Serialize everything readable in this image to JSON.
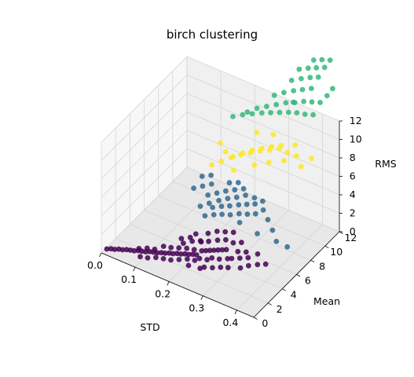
{
  "chart_data": {
    "type": "scatter",
    "subtype": "3d",
    "title": "birch clustering",
    "xlabel": "STD",
    "ylabel": "Mean",
    "zlabel": "RMS",
    "xlim": [
      0,
      0.45
    ],
    "ylim": [
      0,
      12
    ],
    "zlim": [
      0,
      12
    ],
    "x_ticks": [
      "0.0",
      "0.1",
      "0.2",
      "0.3",
      "0.4"
    ],
    "y_ticks": [
      "0",
      "2",
      "4",
      "6",
      "8",
      "10",
      "12"
    ],
    "z_ticks": [
      "0",
      "2",
      "4",
      "6",
      "8",
      "10",
      "12"
    ],
    "grid": true,
    "legend": "none",
    "colors": {
      "pane_left": "#f7f7f7",
      "pane_back": "#f0f0f0",
      "pane_floor": "#e8e8e8",
      "grid": "#d5d5d5",
      "cluster_0": "#440154",
      "cluster_1": "#31688e",
      "cluster_2": "#35b779",
      "cluster_3": "#fde725"
    },
    "series": [
      {
        "cluster": 0,
        "color": "#440154",
        "points": [
          [
            0.01,
            0.3,
            0.35
          ],
          [
            0.02,
            0.4,
            0.45
          ],
          [
            0.03,
            0.45,
            0.5
          ],
          [
            0.04,
            0.55,
            0.6
          ],
          [
            0.05,
            0.6,
            0.65
          ],
          [
            0.06,
            0.7,
            0.75
          ],
          [
            0.07,
            0.75,
            0.8
          ],
          [
            0.08,
            0.8,
            0.85
          ],
          [
            0.09,
            0.9,
            0.95
          ],
          [
            0.1,
            0.95,
            1.0
          ],
          [
            0.11,
            1.0,
            1.05
          ],
          [
            0.12,
            1.1,
            1.15
          ],
          [
            0.13,
            1.15,
            1.2
          ],
          [
            0.14,
            1.2,
            1.25
          ],
          [
            0.15,
            1.3,
            1.35
          ],
          [
            0.16,
            1.35,
            1.4
          ],
          [
            0.17,
            1.45,
            1.5
          ],
          [
            0.18,
            1.5,
            1.55
          ],
          [
            0.19,
            1.6,
            1.65
          ],
          [
            0.2,
            1.65,
            1.7
          ],
          [
            0.21,
            1.75,
            1.8
          ],
          [
            0.22,
            1.8,
            1.85
          ],
          [
            0.23,
            1.9,
            1.95
          ],
          [
            0.24,
            1.95,
            2.0
          ],
          [
            0.15,
            1.6,
            1.8
          ],
          [
            0.17,
            1.7,
            1.9
          ],
          [
            0.19,
            1.85,
            2.05
          ],
          [
            0.21,
            2.0,
            2.2
          ],
          [
            0.23,
            2.1,
            2.3
          ],
          [
            0.25,
            2.2,
            2.4
          ],
          [
            0.26,
            2.3,
            2.5
          ],
          [
            0.27,
            2.4,
            2.6
          ],
          [
            0.28,
            2.5,
            2.7
          ],
          [
            0.29,
            2.6,
            2.8
          ],
          [
            0.3,
            2.7,
            2.9
          ],
          [
            0.31,
            2.8,
            3.0
          ],
          [
            0.18,
            1.2,
            1.1
          ],
          [
            0.2,
            1.4,
            1.3
          ],
          [
            0.22,
            1.6,
            1.5
          ],
          [
            0.24,
            1.7,
            1.6
          ],
          [
            0.25,
            1.9,
            1.8
          ],
          [
            0.27,
            2.0,
            1.9
          ],
          [
            0.28,
            2.2,
            2.1
          ],
          [
            0.3,
            2.3,
            2.2
          ],
          [
            0.32,
            2.5,
            2.4
          ],
          [
            0.33,
            2.6,
            2.5
          ],
          [
            0.2,
            2.0,
            2.6
          ],
          [
            0.22,
            2.3,
            2.9
          ],
          [
            0.24,
            2.5,
            3.1
          ],
          [
            0.26,
            2.7,
            3.2
          ],
          [
            0.28,
            3.0,
            3.4
          ],
          [
            0.3,
            3.2,
            3.6
          ],
          [
            0.32,
            3.3,
            3.5
          ],
          [
            0.34,
            3.5,
            3.7
          ],
          [
            0.36,
            3.2,
            3.2
          ],
          [
            0.35,
            2.8,
            2.7
          ],
          [
            0.37,
            3.0,
            2.9
          ],
          [
            0.38,
            2.6,
            2.5
          ],
          [
            0.4,
            2.9,
            2.7
          ],
          [
            0.33,
            2.1,
            1.9
          ],
          [
            0.36,
            2.4,
            2.1
          ],
          [
            0.26,
            1.5,
            1.2
          ],
          [
            0.29,
            1.8,
            1.5
          ],
          [
            0.31,
            2.0,
            1.7
          ],
          [
            0.12,
            0.8,
            0.7
          ],
          [
            0.14,
            1.0,
            0.9
          ],
          [
            0.16,
            1.1,
            1.0
          ],
          [
            0.1,
            0.7,
            0.6
          ],
          [
            0.22,
            2.8,
            3.3
          ],
          [
            0.25,
            3.1,
            3.6
          ],
          [
            0.27,
            3.4,
            3.9
          ],
          [
            0.29,
            3.6,
            4.0
          ],
          [
            0.31,
            3.8,
            4.1
          ],
          [
            0.23,
            1.3,
            1.2
          ],
          [
            0.27,
            1.6,
            1.4
          ],
          [
            0.34,
            3.0,
            3.1
          ],
          [
            0.39,
            3.4,
            3.3
          ],
          [
            0.42,
            3.1,
            2.9
          ],
          [
            0.19,
            2.2,
            2.8
          ],
          [
            0.21,
            2.5,
            3.0
          ],
          [
            0.13,
            1.3,
            1.4
          ],
          [
            0.11,
            1.2,
            1.3
          ],
          [
            0.09,
            1.0,
            1.1
          ],
          [
            0.24,
            2.6,
            2.9
          ]
        ]
      },
      {
        "cluster": 1,
        "color": "#31688e",
        "points": [
          [
            0.23,
            3.6,
            4.8
          ],
          [
            0.25,
            3.9,
            5.0
          ],
          [
            0.27,
            4.1,
            5.2
          ],
          [
            0.29,
            4.3,
            5.3
          ],
          [
            0.31,
            4.6,
            5.5
          ],
          [
            0.33,
            4.8,
            5.6
          ],
          [
            0.35,
            5.0,
            5.8
          ],
          [
            0.24,
            4.2,
            5.4
          ],
          [
            0.26,
            4.5,
            5.6
          ],
          [
            0.28,
            4.7,
            5.8
          ],
          [
            0.3,
            5.0,
            6.0
          ],
          [
            0.32,
            5.2,
            6.2
          ],
          [
            0.34,
            5.4,
            6.4
          ],
          [
            0.21,
            3.9,
            5.3
          ],
          [
            0.23,
            4.2,
            5.7
          ],
          [
            0.25,
            4.6,
            6.0
          ],
          [
            0.27,
            4.9,
            6.3
          ],
          [
            0.29,
            5.2,
            6.5
          ],
          [
            0.31,
            5.5,
            6.8
          ],
          [
            0.22,
            4.5,
            6.2
          ],
          [
            0.24,
            4.8,
            6.5
          ],
          [
            0.26,
            5.1,
            6.8
          ],
          [
            0.28,
            5.4,
            7.0
          ],
          [
            0.3,
            5.7,
            7.2
          ],
          [
            0.2,
            4.7,
            6.7
          ],
          [
            0.22,
            5.0,
            7.0
          ],
          [
            0.19,
            5.1,
            7.3
          ],
          [
            0.21,
            5.4,
            7.5
          ],
          [
            0.18,
            4.4,
            6.4
          ],
          [
            0.36,
            5.6,
            5.9
          ],
          [
            0.38,
            5.3,
            5.4
          ],
          [
            0.4,
            5.0,
            4.8
          ],
          [
            0.37,
            4.3,
            4.5
          ],
          [
            0.42,
            4.6,
            4.2
          ],
          [
            0.33,
            5.8,
            6.6
          ],
          [
            0.35,
            6.0,
            6.4
          ],
          [
            0.28,
            5.9,
            7.4
          ],
          [
            0.26,
            5.6,
            7.3
          ],
          [
            0.32,
            4.2,
            5.0
          ],
          [
            0.45,
            4.7,
            4.0
          ]
        ]
      },
      {
        "cluster": 3,
        "color": "#fde725",
        "points": [
          [
            0.2,
            6.0,
            8.0
          ],
          [
            0.22,
            6.4,
            8.4
          ],
          [
            0.24,
            6.8,
            8.8
          ],
          [
            0.26,
            7.2,
            9.1
          ],
          [
            0.28,
            7.6,
            9.3
          ],
          [
            0.3,
            8.0,
            9.5
          ],
          [
            0.32,
            8.4,
            9.6
          ],
          [
            0.34,
            8.8,
            9.8
          ],
          [
            0.36,
            9.0,
            9.5
          ],
          [
            0.38,
            9.3,
            9.2
          ],
          [
            0.25,
            6.6,
            9.2
          ],
          [
            0.27,
            7.0,
            9.6
          ],
          [
            0.29,
            7.4,
            9.9
          ],
          [
            0.31,
            7.8,
            10.1
          ],
          [
            0.33,
            8.2,
            10.3
          ],
          [
            0.35,
            8.6,
            10.4
          ],
          [
            0.23,
            6.5,
            9.5
          ],
          [
            0.21,
            6.7,
            10.0
          ],
          [
            0.3,
            7.2,
            8.6
          ],
          [
            0.33,
            7.8,
            8.9
          ],
          [
            0.36,
            8.5,
            9.0
          ],
          [
            0.4,
            9.0,
            8.6
          ],
          [
            0.28,
            8.5,
            10.8
          ],
          [
            0.32,
            8.9,
            10.9
          ],
          [
            0.26,
            6.2,
            8.2
          ],
          [
            0.37,
            9.6,
            10.0
          ],
          [
            0.42,
            9.5,
            9.4
          ]
        ]
      },
      {
        "cluster": 2,
        "color": "#35b779",
        "points": [
          [
            0.22,
            8.0,
            12.0
          ],
          [
            0.24,
            8.4,
            12.2
          ],
          [
            0.26,
            8.8,
            12.3
          ],
          [
            0.28,
            9.2,
            12.4
          ],
          [
            0.3,
            9.5,
            12.5
          ],
          [
            0.32,
            9.8,
            12.6
          ],
          [
            0.34,
            10.1,
            12.7
          ],
          [
            0.36,
            10.3,
            12.8
          ],
          [
            0.38,
            10.5,
            12.8
          ],
          [
            0.4,
            10.7,
            12.9
          ],
          [
            0.27,
            9.0,
            12.9
          ],
          [
            0.29,
            9.4,
            13.1
          ],
          [
            0.31,
            9.8,
            13.3
          ],
          [
            0.33,
            10.2,
            13.5
          ],
          [
            0.35,
            10.5,
            13.6
          ],
          [
            0.37,
            10.8,
            13.8
          ],
          [
            0.39,
            11.0,
            13.9
          ],
          [
            0.41,
            11.2,
            14.0
          ],
          [
            0.3,
            10.0,
            14.0
          ],
          [
            0.32,
            10.4,
            14.3
          ],
          [
            0.34,
            10.8,
            14.5
          ],
          [
            0.36,
            11.1,
            14.7
          ],
          [
            0.38,
            11.4,
            14.9
          ],
          [
            0.33,
            11.0,
            15.3
          ],
          [
            0.35,
            11.4,
            15.5
          ],
          [
            0.37,
            11.7,
            15.7
          ],
          [
            0.39,
            11.9,
            15.9
          ],
          [
            0.34,
            11.6,
            16.2
          ],
          [
            0.36,
            11.9,
            16.4
          ],
          [
            0.38,
            12.1,
            16.6
          ],
          [
            0.4,
            12.3,
            16.8
          ],
          [
            0.37,
            12.2,
            17.2
          ],
          [
            0.39,
            12.4,
            17.4
          ],
          [
            0.41,
            12.6,
            17.5
          ],
          [
            0.35,
            10.3,
            13.8
          ],
          [
            0.25,
            8.6,
            12.5
          ],
          [
            0.42,
            11.7,
            14.5
          ],
          [
            0.43,
            12.0,
            15.2
          ]
        ]
      }
    ]
  }
}
